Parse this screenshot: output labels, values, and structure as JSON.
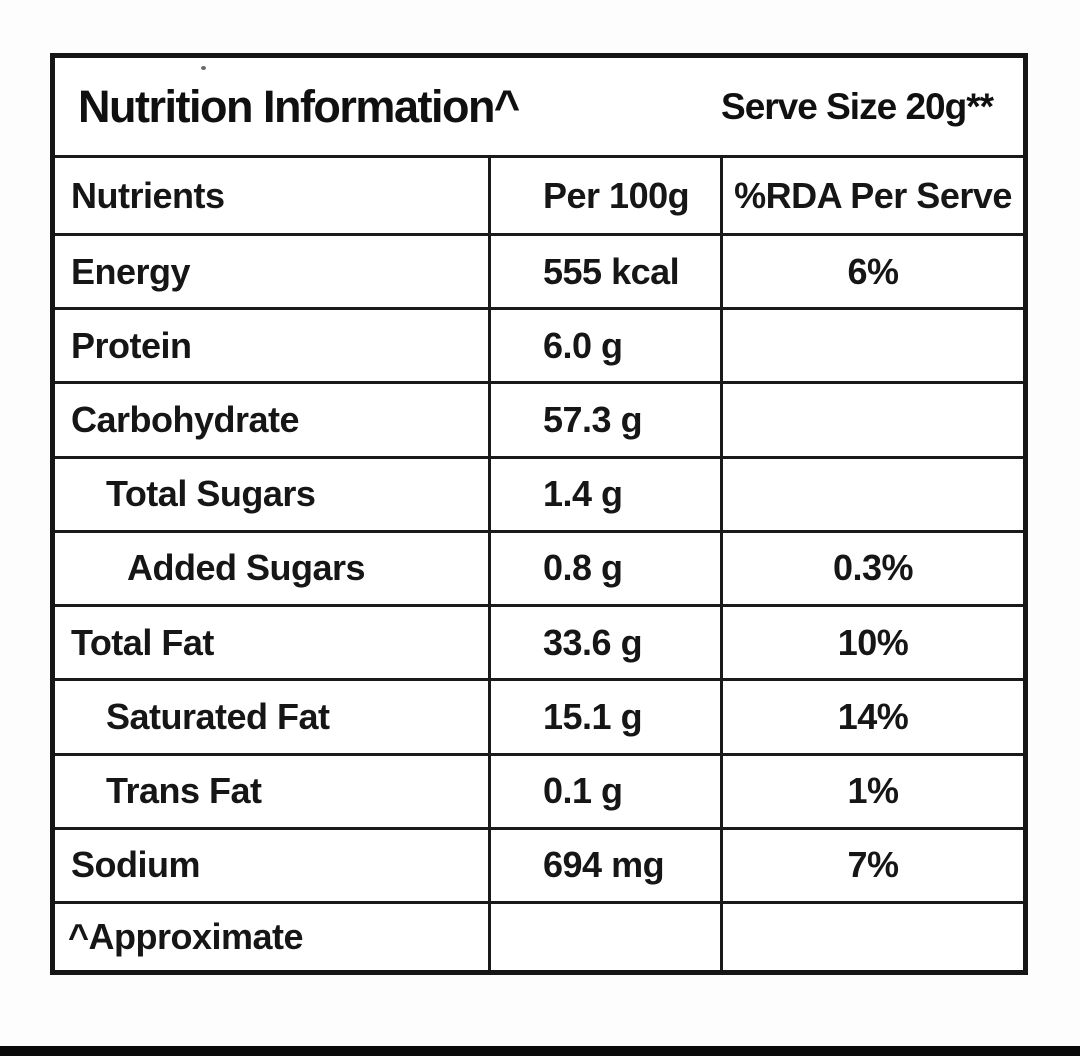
{
  "header": {
    "title": "Nutrition Information^",
    "serve_size": "Serve Size 20g**"
  },
  "table": {
    "columns": {
      "nutrients": "Nutrients",
      "per_100g": "Per 100g",
      "rda_per_serve": "%RDA Per Serve"
    },
    "rows": [
      {
        "label": "Energy",
        "per100": "555 kcal",
        "rda": "6%"
      },
      {
        "label": "Protein",
        "per100": "6.0 g",
        "rda": ""
      },
      {
        "label": "Carbohydrate",
        "per100": "57.3 g",
        "rda": ""
      },
      {
        "label": "Total Sugars",
        "per100": "1.4 g",
        "rda": ""
      },
      {
        "label": "Added Sugars",
        "per100": "0.8 g",
        "rda": "0.3%"
      },
      {
        "label": "Total Fat",
        "per100": "33.6 g",
        "rda": "10%"
      },
      {
        "label": "Saturated Fat",
        "per100": "15.1 g",
        "rda": "14%"
      },
      {
        "label": "Trans Fat",
        "per100": "0.1 g",
        "rda": "1%"
      },
      {
        "label": "Sodium",
        "per100": "694 mg",
        "rda": "7%"
      }
    ],
    "footnote": "^Approximate"
  },
  "colors": {
    "text": "#161616",
    "border": "#1a1a1a",
    "background": "#ffffff",
    "bottom_bar": "#0a0a0a"
  }
}
